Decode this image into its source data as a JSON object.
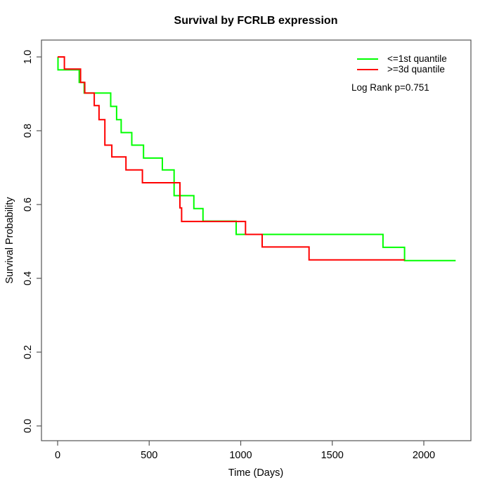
{
  "chart_data": {
    "type": "line",
    "subtype": "kaplan_meier_step",
    "title": "Survival by FCRLB expression",
    "xlabel": "Time (Days)",
    "ylabel": "Survival Probability",
    "annotation": "Log Rank p=0.751",
    "legend_position": "top-right",
    "grid": false,
    "x_ticks": [
      0,
      500,
      1000,
      1500,
      2000
    ],
    "y_ticks": [
      0.0,
      0.2,
      0.4,
      0.6,
      0.8,
      1.0
    ],
    "xlim_days": [
      0,
      2174
    ],
    "ylim": [
      0.0,
      1.0
    ],
    "series": [
      {
        "name": "<=1st quantile",
        "slug": "le-1st-quantile",
        "color": "#00ff00",
        "start": [
          0,
          1.0
        ],
        "steps": [
          [
            2,
            0.965
          ],
          [
            118,
            0.931
          ],
          [
            145,
            0.902
          ],
          [
            290,
            0.866
          ],
          [
            322,
            0.83
          ],
          [
            347,
            0.795
          ],
          [
            405,
            0.761
          ],
          [
            469,
            0.726
          ],
          [
            572,
            0.694
          ],
          [
            636,
            0.624
          ],
          [
            744,
            0.589
          ],
          [
            794,
            0.555
          ],
          [
            975,
            0.519
          ],
          [
            1777,
            0.484
          ],
          [
            1895,
            0.448
          ]
        ],
        "end_time": 2174,
        "final_survival": 0.448
      },
      {
        "name": ">=3d quantile",
        "slug": "ge-3d-quantile",
        "color": "#ff0000",
        "start": [
          0,
          1.0
        ],
        "steps": [
          [
            37,
            0.967
          ],
          [
            125,
            0.931
          ],
          [
            148,
            0.902
          ],
          [
            200,
            0.868
          ],
          [
            226,
            0.83
          ],
          [
            258,
            0.761
          ],
          [
            296,
            0.729
          ],
          [
            373,
            0.694
          ],
          [
            463,
            0.659
          ],
          [
            668,
            0.591
          ],
          [
            677,
            0.554
          ],
          [
            1026,
            0.519
          ],
          [
            1117,
            0.485
          ],
          [
            1373,
            0.45
          ]
        ],
        "end_time": 1895,
        "final_survival": 0.45
      }
    ]
  }
}
